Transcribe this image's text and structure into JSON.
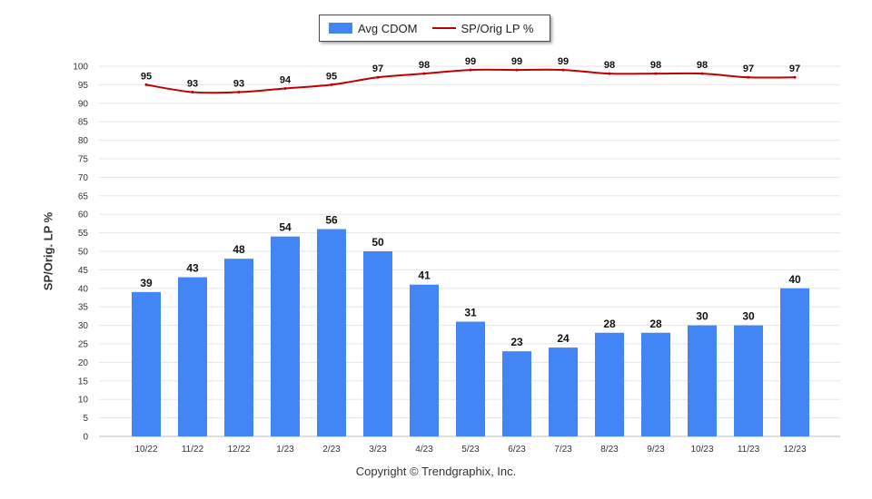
{
  "chart_data": {
    "type": "bar",
    "categories": [
      "10/22",
      "11/22",
      "12/22",
      "1/23",
      "2/23",
      "3/23",
      "4/23",
      "5/23",
      "6/23",
      "7/23",
      "8/23",
      "9/23",
      "10/23",
      "11/23",
      "12/23"
    ],
    "series": [
      {
        "name": "Avg CDOM",
        "type": "bar",
        "color": "#4285f4",
        "values": [
          39,
          43,
          48,
          54,
          56,
          50,
          41,
          31,
          23,
          24,
          28,
          28,
          30,
          30,
          40
        ]
      },
      {
        "name": "SP/Orig LP %",
        "type": "line",
        "color": "#c00000",
        "values": [
          95,
          93,
          93,
          94,
          95,
          97,
          98,
          99,
          99,
          99,
          98,
          98,
          98,
          97,
          97
        ]
      }
    ],
    "ylabel": "SP/Orig. LP %",
    "xlabel": "",
    "ylim": [
      0,
      100
    ],
    "yticks": [
      "0",
      "5",
      "10",
      "15",
      "20",
      "25",
      "30",
      "35",
      "40",
      "45",
      "50",
      "55",
      "60",
      "65",
      "70",
      "75",
      "80",
      "85",
      "90",
      "95",
      "100"
    ],
    "grid": true,
    "legend_position": "top-center"
  },
  "footer": {
    "copyright": "Copyright © Trendgraphix, Inc."
  }
}
